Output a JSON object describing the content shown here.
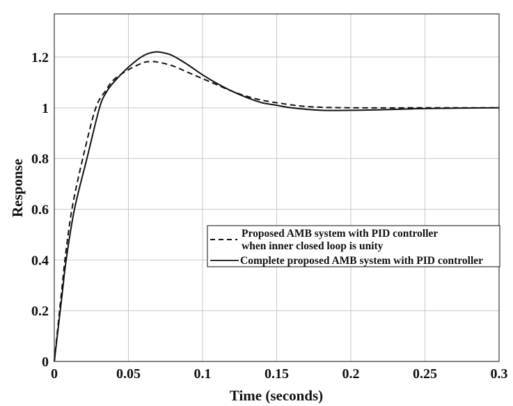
{
  "chart_data": {
    "type": "line",
    "title": "",
    "xlabel": "Time (seconds)",
    "ylabel": "Response",
    "xlim": [
      0,
      0.3
    ],
    "ylim": [
      0,
      1.37
    ],
    "xticks": [
      0,
      0.05,
      0.1,
      0.15,
      0.2,
      0.25,
      0.3
    ],
    "xtick_labels": [
      "0",
      "0.05",
      "0.1",
      "0.15",
      "0.2",
      "0.25",
      "0.3"
    ],
    "yticks": [
      0,
      0.2,
      0.4,
      0.6,
      0.8,
      1,
      1.2
    ],
    "ytick_labels": [
      "0",
      "0.2",
      "0.4",
      "0.6",
      "0.8",
      "1",
      "1.2"
    ],
    "grid": true,
    "legend_position": "center-right",
    "series": [
      {
        "name": "Proposed AMB system with PID controller when inner closed loop is unity",
        "legend_lines": [
          "Proposed AMB system with PID controller",
          "when inner closed loop is unity"
        ],
        "style": "dashed",
        "color": "#111111",
        "x": [
          0,
          0.005,
          0.008,
          0.0125,
          0.02,
          0.028,
          0.035,
          0.04,
          0.05,
          0.06,
          0.065,
          0.07,
          0.08,
          0.09,
          0.1,
          0.11,
          0.12,
          0.13,
          0.14,
          0.15,
          0.17,
          0.2,
          0.25,
          0.3
        ],
        "y": [
          0,
          0.28,
          0.44,
          0.62,
          0.82,
          1.0,
          1.07,
          1.11,
          1.15,
          1.178,
          1.182,
          1.18,
          1.165,
          1.14,
          1.115,
          1.09,
          1.065,
          1.045,
          1.03,
          1.02,
          1.005,
          1.0,
          1.0,
          1.0
        ]
      },
      {
        "name": "Complete proposed AMB system with PID controller",
        "legend_lines": [
          "Complete proposed AMB system with PID controller"
        ],
        "style": "solid",
        "color": "#111111",
        "x": [
          0,
          0.005,
          0.008,
          0.0136,
          0.022,
          0.0305,
          0.035,
          0.04,
          0.05,
          0.06,
          0.068,
          0.075,
          0.08,
          0.09,
          0.1,
          0.11,
          0.12,
          0.13,
          0.14,
          0.15,
          0.16,
          0.18,
          0.2,
          0.22,
          0.25,
          0.3
        ],
        "y": [
          0,
          0.25,
          0.4,
          0.6,
          0.8,
          1.0,
          1.06,
          1.1,
          1.16,
          1.205,
          1.22,
          1.215,
          1.205,
          1.17,
          1.13,
          1.095,
          1.065,
          1.04,
          1.02,
          1.01,
          1.0,
          0.99,
          0.99,
          0.992,
          0.997,
          1.0
        ]
      }
    ]
  }
}
